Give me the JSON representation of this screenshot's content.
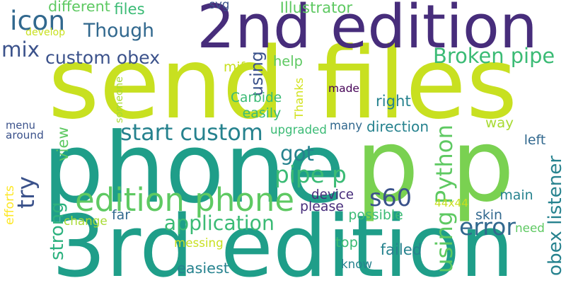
{
  "palette": {
    "lime": "#c8e020",
    "yellow_green": "#a8db34",
    "green": "#5ec962",
    "light_green": "#7ad151",
    "sea_green": "#3bbb75",
    "mint": "#2cb17e",
    "teal": "#1f9e89",
    "dark_teal": "#26828e",
    "steel_blue": "#31688e",
    "slate_blue": "#3b528b",
    "indigo": "#472d7b",
    "deep_purple": "#440154",
    "yellow": "#fde725",
    "pale_yellow": "#d2e21b"
  },
  "words": [
    {
      "text": "send files",
      "color": "#c8e020",
      "vertical": false
    },
    {
      "text": "2nd edition",
      "color": "#472d7b",
      "vertical": false
    },
    {
      "text": "phone",
      "color": "#1f9e89",
      "vertical": false
    },
    {
      "text": "p p",
      "color": "#7ad151",
      "vertical": false
    },
    {
      "text": "3rd edition",
      "color": "#1f9e89",
      "vertical": false
    },
    {
      "text": "edition phone",
      "color": "#5ec962",
      "vertical": false
    },
    {
      "text": "start custom",
      "color": "#26828e",
      "vertical": false
    },
    {
      "text": "custom obex",
      "color": "#3b528b",
      "vertical": false
    },
    {
      "text": "Broken pipe",
      "color": "#3bbb75",
      "vertical": false
    },
    {
      "text": "icon",
      "color": "#31688e",
      "vertical": false
    },
    {
      "text": "Though",
      "color": "#31688e",
      "vertical": false
    },
    {
      "text": "mix",
      "color": "#3b528b",
      "vertical": false
    },
    {
      "text": "got",
      "color": "#26828e",
      "vertical": false
    },
    {
      "text": "pipe p",
      "color": "#3bbb75",
      "vertical": false
    },
    {
      "text": "s60",
      "color": "#3b528b",
      "vertical": false
    },
    {
      "text": "try",
      "color": "#3b528b",
      "vertical": true
    },
    {
      "text": "using Python",
      "color": "#5ec962",
      "vertical": true
    },
    {
      "text": "obex listener",
      "color": "#26828e",
      "vertical": true
    },
    {
      "text": "way",
      "color": "#a8db34",
      "vertical": false
    },
    {
      "text": "application",
      "color": "#3bbb75",
      "vertical": false
    },
    {
      "text": "error",
      "color": "#31688e",
      "vertical": false
    },
    {
      "text": "strong",
      "color": "#2cb17e",
      "vertical": true
    },
    {
      "text": "messing",
      "color": "#c8e020",
      "vertical": false
    },
    {
      "text": "easiest",
      "color": "#26828e",
      "vertical": false
    },
    {
      "text": "failed",
      "color": "#26828e",
      "vertical": false
    },
    {
      "text": "top",
      "color": "#3bbb75",
      "vertical": false
    },
    {
      "text": "know",
      "color": "#26828e",
      "vertical": false
    },
    {
      "text": "svg",
      "color": "#3b528b",
      "vertical": false
    },
    {
      "text": "different",
      "color": "#5ec962",
      "vertical": false
    },
    {
      "text": "files",
      "color": "#3bbb75",
      "vertical": false
    },
    {
      "text": "Illustrator",
      "color": "#5ec962",
      "vertical": false
    },
    {
      "text": "develop",
      "color": "#c8e020",
      "vertical": false
    },
    {
      "text": "help",
      "color": "#5ec962",
      "vertical": false
    },
    {
      "text": "mif",
      "color": "#c8e020",
      "vertical": false
    },
    {
      "text": "using",
      "color": "#3b528b",
      "vertical": true
    },
    {
      "text": "someone",
      "color": "#a8db34",
      "vertical": true
    },
    {
      "text": "Thanks",
      "color": "#d2e21b",
      "vertical": true
    },
    {
      "text": "made",
      "color": "#440154",
      "vertical": false
    },
    {
      "text": "Carbide",
      "color": "#3bbb75",
      "vertical": false
    },
    {
      "text": "right",
      "color": "#26828e",
      "vertical": false
    },
    {
      "text": "easily",
      "color": "#3bbb75",
      "vertical": false
    },
    {
      "text": "menu",
      "color": "#3b528b",
      "vertical": false
    },
    {
      "text": "around",
      "color": "#3b528b",
      "vertical": false
    },
    {
      "text": "view",
      "color": "#5ec962",
      "vertical": true
    },
    {
      "text": "upgraded",
      "color": "#3bbb75",
      "vertical": false
    },
    {
      "text": "many",
      "color": "#31688e",
      "vertical": false
    },
    {
      "text": "direction",
      "color": "#26828e",
      "vertical": false
    },
    {
      "text": "left",
      "color": "#31688e",
      "vertical": false
    },
    {
      "text": "efforts",
      "color": "#fde725",
      "vertical": true
    },
    {
      "text": "device",
      "color": "#472d7b",
      "vertical": false
    },
    {
      "text": "please",
      "color": "#472d7b",
      "vertical": false
    },
    {
      "text": "44x44",
      "color": "#c8e020",
      "vertical": false
    },
    {
      "text": "main",
      "color": "#26828e",
      "vertical": false
    },
    {
      "text": "far",
      "color": "#31688e",
      "vertical": false
    },
    {
      "text": "change",
      "color": "#a8db34",
      "vertical": false
    },
    {
      "text": "possible",
      "color": "#3bbb75",
      "vertical": false
    },
    {
      "text": "skin",
      "color": "#31688e",
      "vertical": false
    },
    {
      "text": "need",
      "color": "#5ec962",
      "vertical": false
    }
  ]
}
